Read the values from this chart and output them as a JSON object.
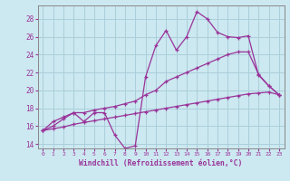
{
  "x": [
    0,
    1,
    2,
    3,
    4,
    5,
    6,
    7,
    8,
    9,
    10,
    11,
    12,
    13,
    14,
    15,
    16,
    17,
    18,
    19,
    20,
    21,
    22,
    23
  ],
  "line_spiky": [
    15.5,
    16.5,
    17.0,
    17.5,
    16.5,
    17.5,
    17.5,
    15.0,
    13.5,
    13.8,
    21.5,
    25.0,
    26.7,
    24.5,
    26.0,
    28.8,
    28.0,
    26.5,
    26.0,
    25.9,
    26.1,
    21.7,
    20.5,
    19.5
  ],
  "line_mid": [
    15.5,
    16.0,
    16.8,
    17.5,
    17.5,
    17.8,
    18.0,
    18.2,
    18.5,
    18.8,
    19.5,
    20.0,
    21.0,
    21.5,
    22.0,
    22.5,
    23.0,
    23.5,
    24.0,
    24.3,
    24.3,
    21.8,
    20.5,
    19.5
  ],
  "line_flat": [
    15.5,
    15.7,
    15.9,
    16.2,
    16.4,
    16.6,
    16.8,
    17.0,
    17.2,
    17.4,
    17.6,
    17.8,
    18.0,
    18.2,
    18.4,
    18.6,
    18.8,
    19.0,
    19.2,
    19.4,
    19.6,
    19.7,
    19.8,
    19.5
  ],
  "color": "#993399",
  "bg_color": "#cce8f0",
  "grid_color": "#aacfdb",
  "xlabel": "Windchill (Refroidissement éolien,°C)",
  "ylim": [
    13.5,
    29.5
  ],
  "xlim": [
    -0.5,
    23.5
  ],
  "yticks": [
    14,
    16,
    18,
    20,
    22,
    24,
    26,
    28
  ],
  "xticks": [
    0,
    1,
    2,
    3,
    4,
    5,
    6,
    7,
    8,
    9,
    10,
    11,
    12,
    13,
    14,
    15,
    16,
    17,
    18,
    19,
    20,
    21,
    22,
    23
  ]
}
